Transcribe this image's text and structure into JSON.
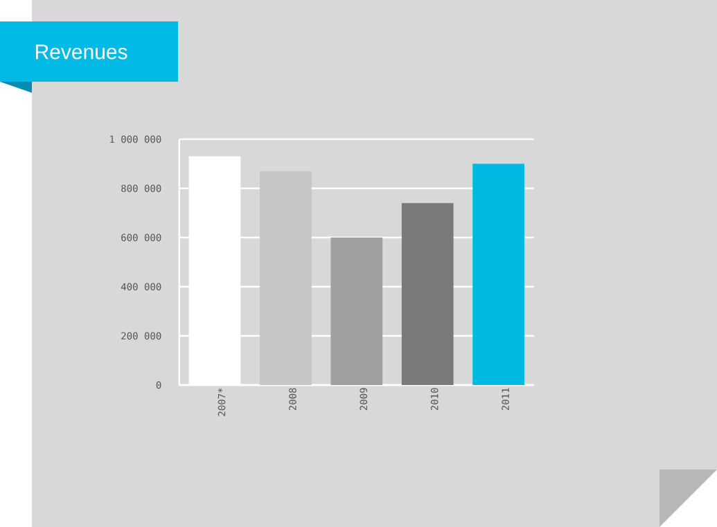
{
  "chart_data": {
    "type": "bar",
    "title": "Revenues",
    "categories": [
      "2007*",
      "2008",
      "2009",
      "2010",
      "2011"
    ],
    "values": [
      930000,
      870000,
      600000,
      740000,
      900000
    ],
    "colors": [
      "#ffffff",
      "#c6c6c6",
      "#9f9f9f",
      "#7a7a7a",
      "#00b9e2"
    ],
    "ylim": [
      0,
      1000000
    ],
    "yticks": [
      0,
      {
        "value": 200000,
        "label": "200 000"
      },
      {
        "value": 400000,
        "label": "400 000"
      },
      {
        "value": 600000,
        "label": "600 000"
      },
      {
        "value": 800000,
        "label": "800 000"
      },
      {
        "value": 1000000,
        "label": "1 000 000"
      }
    ],
    "grid": "y"
  }
}
